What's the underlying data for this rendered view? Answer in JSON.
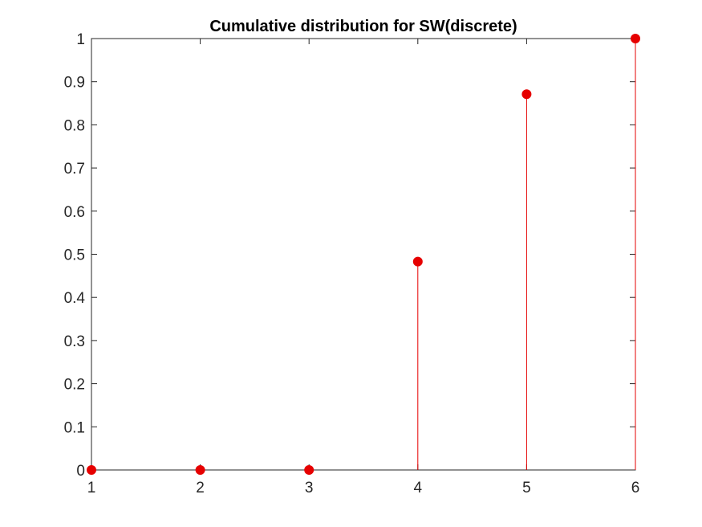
{
  "chart_data": {
    "type": "stem",
    "title": "Cumulative distribution for SW(discrete)",
    "xlabel": "",
    "ylabel": "",
    "x": [
      1,
      2,
      3,
      4,
      5,
      6
    ],
    "y": [
      0,
      0,
      0,
      0.483,
      0.871,
      1.0
    ],
    "xlim": [
      1,
      6
    ],
    "ylim": [
      0,
      1
    ],
    "xticks": [
      1,
      2,
      3,
      4,
      5,
      6
    ],
    "xtick_labels": [
      "1",
      "2",
      "3",
      "4",
      "5",
      "6"
    ],
    "yticks": [
      0,
      0.1,
      0.2,
      0.3,
      0.4,
      0.5,
      0.6,
      0.7,
      0.8,
      0.9,
      1
    ],
    "ytick_labels": [
      "0",
      "0.1",
      "0.2",
      "0.3",
      "0.4",
      "0.5",
      "0.6",
      "0.7",
      "0.8",
      "0.9",
      "1"
    ],
    "grid": false,
    "legend": "none",
    "marker": "filled-circle",
    "color": "#e60000",
    "axis_color": "#262626"
  }
}
